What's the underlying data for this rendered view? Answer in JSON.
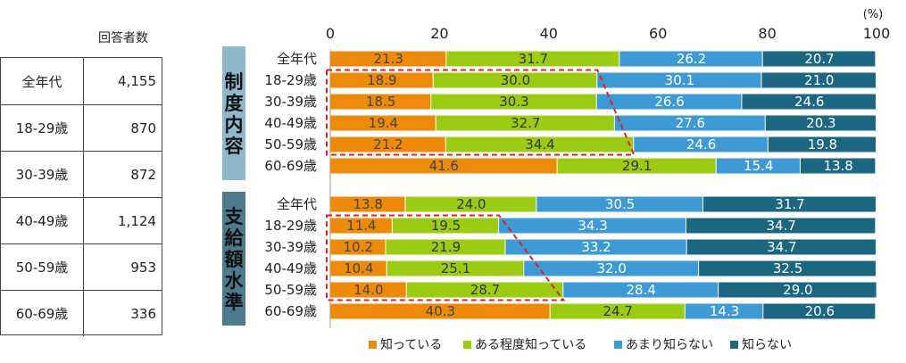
{
  "table": {
    "header": "回答者数",
    "rows": [
      {
        "label": "全年代",
        "value": "4,155"
      },
      {
        "label": "18-29歳",
        "value": "870"
      },
      {
        "label": "30-39歳",
        "value": "872"
      },
      {
        "label": "40-49歳",
        "value": "1,124"
      },
      {
        "label": "50-59歳",
        "value": "953"
      },
      {
        "label": "60-69歳",
        "value": "336"
      }
    ]
  },
  "chart_data": {
    "type": "bar",
    "orientation": "horizontal",
    "stacked": true,
    "unit_label": "(%)",
    "xlim": [
      0,
      100
    ],
    "ticks": [
      0,
      20,
      40,
      60,
      80,
      100
    ],
    "categories": [
      "全年代",
      "18-29歳",
      "30-39歳",
      "40-49歳",
      "50-59歳",
      "60-69歳"
    ],
    "legend": [
      "知っている",
      "ある程度知っている",
      "あまり知らない",
      "知らない"
    ],
    "colors": [
      "#ee8a0a",
      "#9ccb14",
      "#3d9ad4",
      "#1b6680"
    ],
    "groups": [
      {
        "label": "制度内容",
        "values": [
          [
            21.3,
            31.7,
            26.2,
            20.7
          ],
          [
            18.9,
            30.0,
            30.1,
            21.0
          ],
          [
            18.5,
            30.3,
            26.6,
            24.6
          ],
          [
            19.4,
            32.7,
            27.6,
            20.3
          ],
          [
            21.2,
            34.4,
            24.6,
            19.8
          ],
          [
            41.6,
            29.1,
            15.4,
            13.8
          ]
        ]
      },
      {
        "label": "支給額水準",
        "values": [
          [
            13.8,
            24.0,
            30.5,
            31.7
          ],
          [
            11.4,
            19.5,
            34.3,
            34.7
          ],
          [
            10.2,
            21.9,
            33.2,
            34.7
          ],
          [
            10.4,
            25.1,
            32.0,
            32.5
          ],
          [
            14.0,
            28.7,
            28.4,
            29.0
          ],
          [
            40.3,
            24.7,
            14.3,
            20.6
          ]
        ]
      }
    ]
  }
}
